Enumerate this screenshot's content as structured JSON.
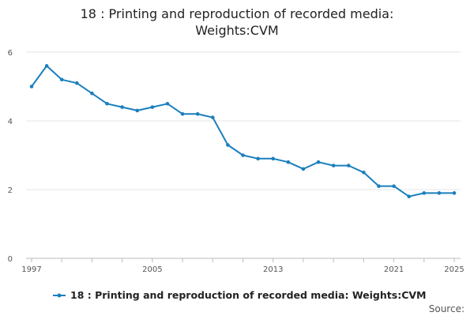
{
  "chart_data": {
    "type": "line",
    "title_lines": [
      "18 : Printing and reproduction of recorded media:",
      "Weights:CVM"
    ],
    "xlabel": "",
    "ylabel": "",
    "x": [
      1997,
      1998,
      1999,
      2000,
      2001,
      2002,
      2003,
      2004,
      2005,
      2006,
      2007,
      2008,
      2009,
      2010,
      2011,
      2012,
      2013,
      2014,
      2015,
      2016,
      2017,
      2018,
      2019,
      2020,
      2021,
      2022,
      2023,
      2024,
      2025
    ],
    "series": [
      {
        "name": "18 : Printing and reproduction of recorded media: Weights:CVM",
        "color": "#1a7fbd",
        "values": [
          5.0,
          5.6,
          5.2,
          5.1,
          4.8,
          4.5,
          4.4,
          4.3,
          4.4,
          4.5,
          4.2,
          4.2,
          4.1,
          3.3,
          3.0,
          2.9,
          2.9,
          2.8,
          2.6,
          2.8,
          2.7,
          2.7,
          2.5,
          2.1,
          2.1,
          1.8,
          1.9,
          1.9,
          1.9
        ]
      }
    ],
    "ylim": [
      0,
      6
    ],
    "yticks": [
      0,
      2,
      4,
      6
    ],
    "xticks": [
      1997,
      2005,
      2013,
      2021,
      2025
    ],
    "grid": true,
    "legend_position": "bottom",
    "source_label": "Source:"
  }
}
